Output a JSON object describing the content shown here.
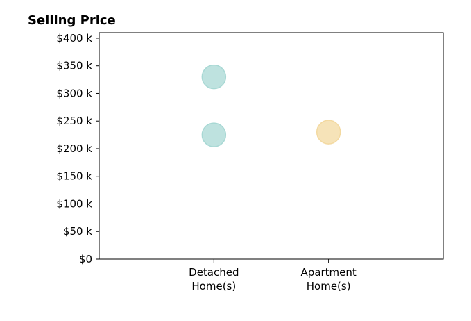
{
  "chart_data": {
    "type": "scatter",
    "title": "Selling Price",
    "xlabel": "",
    "ylabel": "",
    "categories": [
      [
        "Detached",
        "Home(s)"
      ],
      [
        "Apartment",
        "Home(s)"
      ]
    ],
    "xlim": [
      -1,
      2
    ],
    "ylim": [
      0,
      410000
    ],
    "yticks": [
      0,
      50000,
      100000,
      150000,
      200000,
      250000,
      300000,
      350000,
      400000
    ],
    "ytick_labels": [
      "$0",
      "$50 k",
      "$100 k",
      "$150 k",
      "$200 k",
      "$250 k",
      "$300 k",
      "$350 k",
      "$400 k"
    ],
    "grid": false,
    "points": [
      {
        "category_index": 0,
        "y": 330000,
        "color": "#a8d8d4"
      },
      {
        "category_index": 0,
        "y": 225000,
        "color": "#a8d8d4"
      },
      {
        "category_index": 1,
        "y": 230000,
        "color": "#f3d9a0"
      }
    ]
  }
}
